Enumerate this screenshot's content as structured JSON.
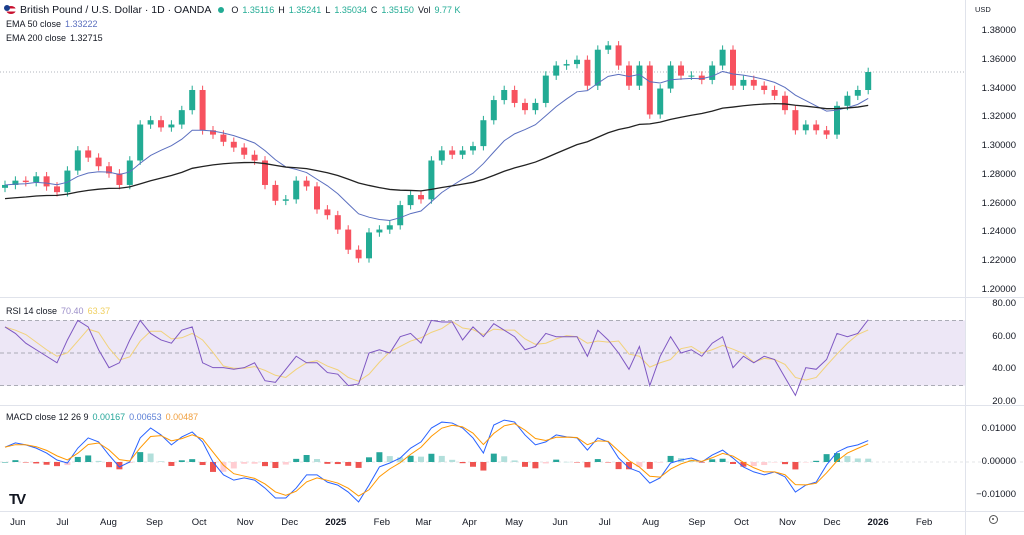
{
  "header": {
    "symbol_title": "British Pound / U.S. Dollar · 1D · OANDA",
    "ohlc": {
      "o_label": "O",
      "o": "1.35116",
      "h_label": "H",
      "h": "1.35241",
      "l_label": "L",
      "l": "1.35034",
      "c_label": "C",
      "c": "1.35150",
      "vol_label": "Vol",
      "vol": "9.77 K"
    },
    "ema50_label": "EMA 50 close",
    "ema50_value": "1.33222",
    "ema200_label": "EMA 200 close",
    "ema200_value": "1.32715"
  },
  "rsi_legend": {
    "label": "RSI 14 close",
    "value": "70.40",
    "ma_value": "63.37"
  },
  "macd_legend": {
    "label": "MACD close 12 26 9",
    "hist": "0.00167",
    "macd": "0.00653",
    "signal": "0.00487"
  },
  "currency": "USD",
  "colors": {
    "up": "#22ab94",
    "down": "#f7525f",
    "ema50": "#5b6fbf",
    "ema200": "#222222",
    "rsi": "#7e57c2",
    "rsi_ma": "#f2d27a",
    "rsi_band": "#ede7f6",
    "macd": "#2962ff",
    "signal": "#ff9800",
    "hist_up": "#26a69a",
    "hist_up_light": "#b2dfdb",
    "hist_down": "#ef5350",
    "hist_down_light": "#ffcdd2"
  },
  "icons": {
    "logo": "tradingview-logo",
    "settings": "settings-icon",
    "flag": "gbp-usd-flag-icon"
  },
  "chart_data": {
    "type": "candlestick",
    "interval_note": "weekly closes sampled from daily chart",
    "price_axis": {
      "ticks": [
        "1.38000",
        "1.36000",
        "1.34000",
        "1.32000",
        "1.30000",
        "1.28000",
        "1.26000",
        "1.24000",
        "1.22000",
        "1.20000"
      ],
      "ylim": [
        1.2,
        1.38
      ]
    },
    "rsi_axis": {
      "ticks": [
        "80.00",
        "60.00",
        "40.00",
        "20.00"
      ],
      "bands": [
        70,
        50,
        30
      ]
    },
    "macd_axis": {
      "ticks": [
        "0.01000",
        "0.00000",
        "−0.01000"
      ]
    },
    "time_axis": [
      {
        "label": "Jun",
        "date": "2024-06-01"
      },
      {
        "label": "Jul",
        "date": "2024-07-01"
      },
      {
        "label": "Aug",
        "date": "2024-08-01"
      },
      {
        "label": "Sep",
        "date": "2024-09-01"
      },
      {
        "label": "Oct",
        "date": "2024-10-01"
      },
      {
        "label": "Nov",
        "date": "2024-11-01"
      },
      {
        "label": "Dec",
        "date": "2024-12-01"
      },
      {
        "label": "2025",
        "date": "2025-01-01",
        "bold": true
      },
      {
        "label": "Feb",
        "date": "2025-02-01"
      },
      {
        "label": "Mar",
        "date": "2025-03-01"
      },
      {
        "label": "Apr",
        "date": "2025-04-01"
      },
      {
        "label": "May",
        "date": "2025-05-01"
      },
      {
        "label": "Jun",
        "date": "2025-06-01"
      },
      {
        "label": "Jul",
        "date": "2025-07-01"
      },
      {
        "label": "Aug",
        "date": "2025-08-01"
      },
      {
        "label": "Sep",
        "date": "2025-09-01"
      },
      {
        "label": "Oct",
        "date": "2025-10-01"
      },
      {
        "label": "Nov",
        "date": "2025-11-01"
      },
      {
        "label": "Dec",
        "date": "2025-12-01"
      },
      {
        "label": "2026",
        "date": "2026-01-01",
        "bold": true
      },
      {
        "label": "Feb",
        "date": "2026-02-01"
      }
    ],
    "last_price": 1.3515,
    "close": [
      1.273,
      1.276,
      1.275,
      1.279,
      1.272,
      1.268,
      1.283,
      1.297,
      1.292,
      1.286,
      1.281,
      1.273,
      1.29,
      1.315,
      1.318,
      1.313,
      1.315,
      1.325,
      1.339,
      1.311,
      1.308,
      1.303,
      1.299,
      1.294,
      1.29,
      1.273,
      1.262,
      1.263,
      1.276,
      1.272,
      1.256,
      1.252,
      1.242,
      1.228,
      1.222,
      1.24,
      1.242,
      1.245,
      1.259,
      1.266,
      1.263,
      1.29,
      1.297,
      1.294,
      1.297,
      1.3,
      1.318,
      1.332,
      1.339,
      1.33,
      1.325,
      1.33,
      1.349,
      1.356,
      1.357,
      1.36,
      1.342,
      1.367,
      1.37,
      1.356,
      1.342,
      1.356,
      1.322,
      1.34,
      1.356,
      1.349,
      1.349,
      1.346,
      1.356,
      1.367,
      1.342,
      1.346,
      1.342,
      1.339,
      1.335,
      1.325,
      1.311,
      1.315,
      1.311,
      1.308,
      1.328,
      1.335,
      1.339,
      1.3515
    ],
    "rsi": [
      66,
      62,
      56,
      52,
      48,
      44,
      58,
      70,
      66,
      52,
      41,
      44,
      58,
      70,
      62,
      58,
      56,
      64,
      66,
      44,
      41,
      41,
      40,
      41,
      44,
      33,
      32,
      40,
      48,
      44,
      44,
      38,
      37,
      30,
      31,
      50,
      52,
      50,
      60,
      62,
      56,
      70,
      69,
      69,
      58,
      66,
      60,
      68,
      64,
      60,
      52,
      54,
      62,
      60,
      60,
      60,
      48,
      64,
      58,
      50,
      40,
      54,
      30,
      48,
      60,
      50,
      52,
      48,
      56,
      60,
      41,
      48,
      44,
      48,
      46,
      35,
      24,
      41,
      40,
      46,
      62,
      60,
      62,
      70.4
    ],
    "macd": [
      0.0045,
      0.0058,
      0.0052,
      0.0042,
      0.0027,
      0.0006,
      -0.0003,
      0.0042,
      0.0073,
      0.0061,
      0.0021,
      -0.0015,
      0,
      0.0073,
      0.0103,
      0.0082,
      0.0052,
      0.0076,
      0.0091,
      0.0061,
      0,
      -0.0039,
      -0.0055,
      -0.0048,
      -0.0055,
      -0.0079,
      -0.0109,
      -0.0109,
      -0.0079,
      -0.0039,
      -0.0039,
      -0.0061,
      -0.007,
      -0.0091,
      -0.0121,
      -0.007,
      -0.0015,
      -0.0003,
      0.0012,
      0.0042,
      0.0061,
      0.0103,
      0.0121,
      0.0118,
      0.0103,
      0.0073,
      0.0027,
      0.0112,
      0.0127,
      0.0121,
      0.0082,
      0.0052,
      0.0061,
      0.0082,
      0.0076,
      0.0073,
      0.0036,
      0.0073,
      0.0061,
      0.0012,
      -0.0018,
      -0.003,
      -0.0064,
      -0.0048,
      -0.0003,
      0.0006,
      0.0012,
      0,
      0.0021,
      0.0036,
      0.0012,
      -0.0015,
      -0.003,
      -0.0039,
      -0.003,
      -0.0045,
      -0.0091,
      -0.007,
      -0.0061,
      -0.0009,
      0.003,
      0.0045,
      0.0052,
      0.0065
    ]
  }
}
